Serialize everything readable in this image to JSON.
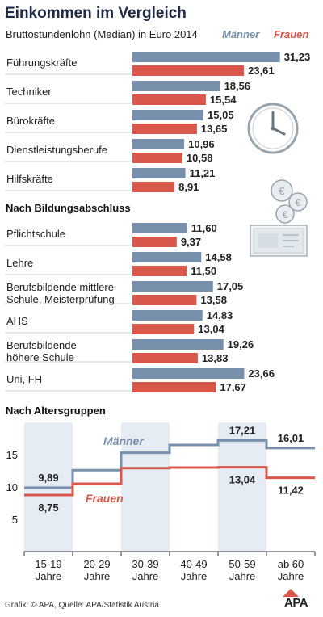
{
  "header": {
    "title": "Einkommen im Vergleich",
    "subtitle": "Bruttostundenlohn (Median) in Euro 2014",
    "legend_m": "Männer",
    "legend_f": "Frauen"
  },
  "colors": {
    "maenner": "#7990ad",
    "frauen": "#d9574b",
    "band": "#e6ecf4",
    "text": "#222222"
  },
  "footer": {
    "credit": "Grafik: © APA, Quelle: APA/Statistik Austria",
    "logo": "APA"
  },
  "chart_data": [
    {
      "type": "bar",
      "orientation": "horizontal",
      "categories": [
        "Führungskräfte",
        "Techniker",
        "Bürokräfte",
        "Dienstleistungsberufe",
        "Hilfskräfte"
      ],
      "series": [
        {
          "name": "Männer",
          "values": [
            31.23,
            18.56,
            15.05,
            10.96,
            11.21
          ]
        },
        {
          "name": "Frauen",
          "values": [
            23.61,
            15.54,
            13.65,
            10.58,
            8.91
          ]
        }
      ],
      "value_labels": {
        "Männer": [
          "31,23",
          "18,56",
          "15,05",
          "10,96",
          "11,21"
        ],
        "Frauen": [
          "23,61",
          "15,54",
          "13,65",
          "10,58",
          "8,91"
        ]
      }
    },
    {
      "type": "bar",
      "orientation": "horizontal",
      "title": "Nach Bildungsabschluss",
      "categories": [
        "Pflichtschule",
        "Lehre",
        "Berufsbildende mittlere\nSchule, Meisterprüfung",
        "AHS",
        "Berufsbildende\nhöhere Schule",
        "Uni, FH"
      ],
      "series": [
        {
          "name": "Männer",
          "values": [
            11.6,
            14.58,
            17.05,
            14.83,
            19.26,
            23.66
          ]
        },
        {
          "name": "Frauen",
          "values": [
            9.37,
            11.5,
            13.58,
            13.04,
            13.83,
            17.67
          ]
        }
      ],
      "value_labels": {
        "Männer": [
          "11,60",
          "14,58",
          "17,05",
          "14,83",
          "19,26",
          "23,66"
        ],
        "Frauen": [
          "9,37",
          "11,50",
          "13,58",
          "13,04",
          "13,83",
          "17,67"
        ]
      }
    },
    {
      "type": "line",
      "title": "Nach Altersgruppen",
      "categories": [
        "15-19\nJahre",
        "20-29\nJahre",
        "30-39\nJahre",
        "40-49\nJahre",
        "50-59\nJahre",
        "ab 60\nJahre"
      ],
      "series": [
        {
          "name": "Männer",
          "values": [
            9.89,
            12.6,
            15.3,
            16.5,
            17.21,
            16.01
          ]
        },
        {
          "name": "Frauen",
          "values": [
            8.75,
            10.5,
            12.9,
            13.0,
            13.04,
            11.42
          ]
        }
      ],
      "labeled_points": [
        {
          "series": "Männer",
          "index": 0,
          "text": "9,89"
        },
        {
          "series": "Frauen",
          "index": 0,
          "text": "8,75"
        },
        {
          "series": "Männer",
          "index": 4,
          "text": "17,21"
        },
        {
          "series": "Frauen",
          "index": 4,
          "text": "13,04"
        },
        {
          "series": "Männer",
          "index": 5,
          "text": "16,01"
        },
        {
          "series": "Frauen",
          "index": 5,
          "text": "11,42"
        }
      ],
      "yticks": [
        "15",
        "10",
        "5"
      ],
      "ylim": [
        0,
        20
      ],
      "grid": false
    }
  ]
}
